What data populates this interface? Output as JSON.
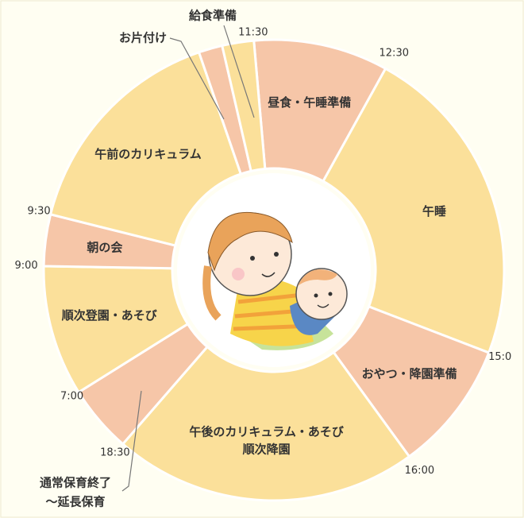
{
  "chart_data": {
    "type": "donut",
    "categories": [
      [
        "昼食・午睡準備"
      ],
      [
        "午睡"
      ],
      [
        "おやつ・降園準備"
      ],
      [
        "午後のカリキュラム・あそび",
        "順次降園"
      ],
      [
        "通常保育終了",
        "～延長保育"
      ],
      [
        "順次登園・あそび"
      ],
      [
        "朝の会"
      ],
      [
        "午前のカリキュラム"
      ],
      [
        "お片付け"
      ],
      [
        "給食準備"
      ]
    ],
    "values": [
      34,
      82,
      33,
      77,
      17,
      33,
      13,
      57,
      6,
      8
    ],
    "colors": [
      "#f6c6a8",
      "#fbe09a",
      "#f6c6a8",
      "#fbe09a",
      "#f6c6a8",
      "#fbe09a",
      "#f6c6a8",
      "#fbe09a",
      "#f6c6a8",
      "#fbe09a"
    ],
    "end_time_labels": [
      "12:30",
      "15:0",
      "16:00",
      "18:30",
      "7:00",
      "9:00",
      "9:30",
      null,
      null,
      "11:30"
    ]
  }
}
